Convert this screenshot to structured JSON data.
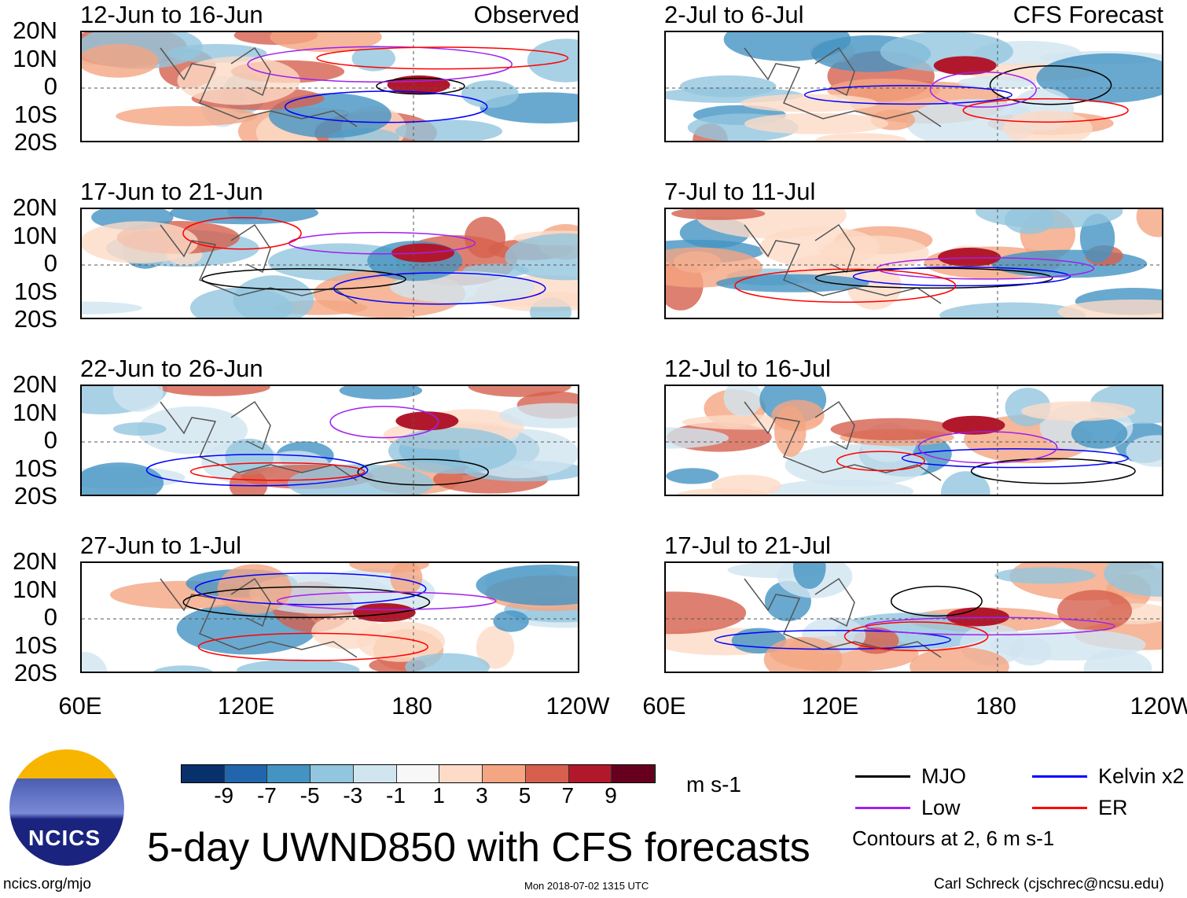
{
  "observed_label": "Observed",
  "forecast_label": "CFS Forecast",
  "panels_left": [
    "12-Jun to 16-Jun",
    "17-Jun to 21-Jun",
    "22-Jun to 26-Jun",
    "27-Jun to 1-Jul"
  ],
  "panels_right": [
    "2-Jul to 6-Jul",
    "7-Jul to 11-Jul",
    "12-Jul to 16-Jul",
    "17-Jul to 21-Jul"
  ],
  "lat_labels": [
    "20N",
    "10N",
    "0",
    "10S",
    "20S"
  ],
  "lon_labels": [
    "60E",
    "120E",
    "180",
    "120W"
  ],
  "colorbar": {
    "labels": [
      "-9",
      "-7",
      "-5",
      "-3",
      "-1",
      "1",
      "3",
      "5",
      "7",
      "9"
    ],
    "colors": [
      "#08306b",
      "#2166ac",
      "#4393c3",
      "#92c5de",
      "#d1e5f0",
      "#f7f7f7",
      "#fddbc7",
      "#f4a582",
      "#d6604d",
      "#b2182b",
      "#67001f"
    ],
    "units": "m s-1"
  },
  "legend": {
    "items": [
      {
        "label": "MJO",
        "color": "#000000"
      },
      {
        "label": "Kelvin x2",
        "color": "#0000ff"
      },
      {
        "label": "Low",
        "color": "#a020f0"
      },
      {
        "label": "ER",
        "color": "#ff0000"
      }
    ],
    "note": "Contours at 2, 6 m s-1"
  },
  "title": "5-day UWND850 with CFS forecasts",
  "logo_text": "NCICS",
  "footer": {
    "url": "ncics.org/mjo",
    "timestamp": "Mon 2018-07-02 1315 UTC",
    "author": "Carl Schreck (cjschrec@ncsu.edu)"
  }
}
